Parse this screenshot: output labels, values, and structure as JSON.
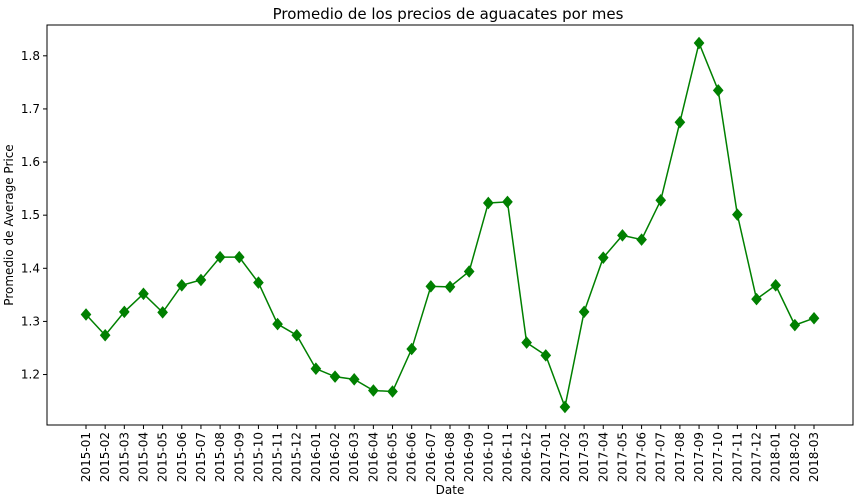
{
  "chart_data": {
    "type": "line",
    "title": "Promedio de los precios de aguacates por mes",
    "xlabel": "Date",
    "ylabel": "Promedio de Average Price",
    "categories": [
      "2015-01",
      "2015-02",
      "2015-03",
      "2015-04",
      "2015-05",
      "2015-06",
      "2015-07",
      "2015-08",
      "2015-09",
      "2015-10",
      "2015-11",
      "2015-12",
      "2016-01",
      "2016-02",
      "2016-03",
      "2016-04",
      "2016-05",
      "2016-06",
      "2016-07",
      "2016-08",
      "2016-09",
      "2016-10",
      "2016-11",
      "2016-12",
      "2017-01",
      "2017-02",
      "2017-03",
      "2017-04",
      "2017-05",
      "2017-06",
      "2017-07",
      "2017-08",
      "2017-09",
      "2017-10",
      "2017-11",
      "2017-12",
      "2018-01",
      "2018-02",
      "2018-03"
    ],
    "series": [
      {
        "values": [
          1.313,
          1.274,
          1.318,
          1.352,
          1.317,
          1.368,
          1.378,
          1.421,
          1.421,
          1.373,
          1.295,
          1.274,
          1.211,
          1.196,
          1.191,
          1.17,
          1.168,
          1.248,
          1.366,
          1.365,
          1.394,
          1.523,
          1.525,
          1.26,
          1.236,
          1.139,
          1.318,
          1.42,
          1.462,
          1.454,
          1.528,
          1.675,
          1.824,
          1.735,
          1.501,
          1.342,
          1.368,
          1.293,
          1.306
        ],
        "color": "#008000",
        "marker": "diamond"
      }
    ],
    "yticks": [
      "1.2",
      "1.3",
      "1.4",
      "1.5",
      "1.6",
      "1.7",
      "1.8"
    ],
    "ylim": [
      1.105,
      1.858
    ],
    "grid": false,
    "legend": "none"
  }
}
